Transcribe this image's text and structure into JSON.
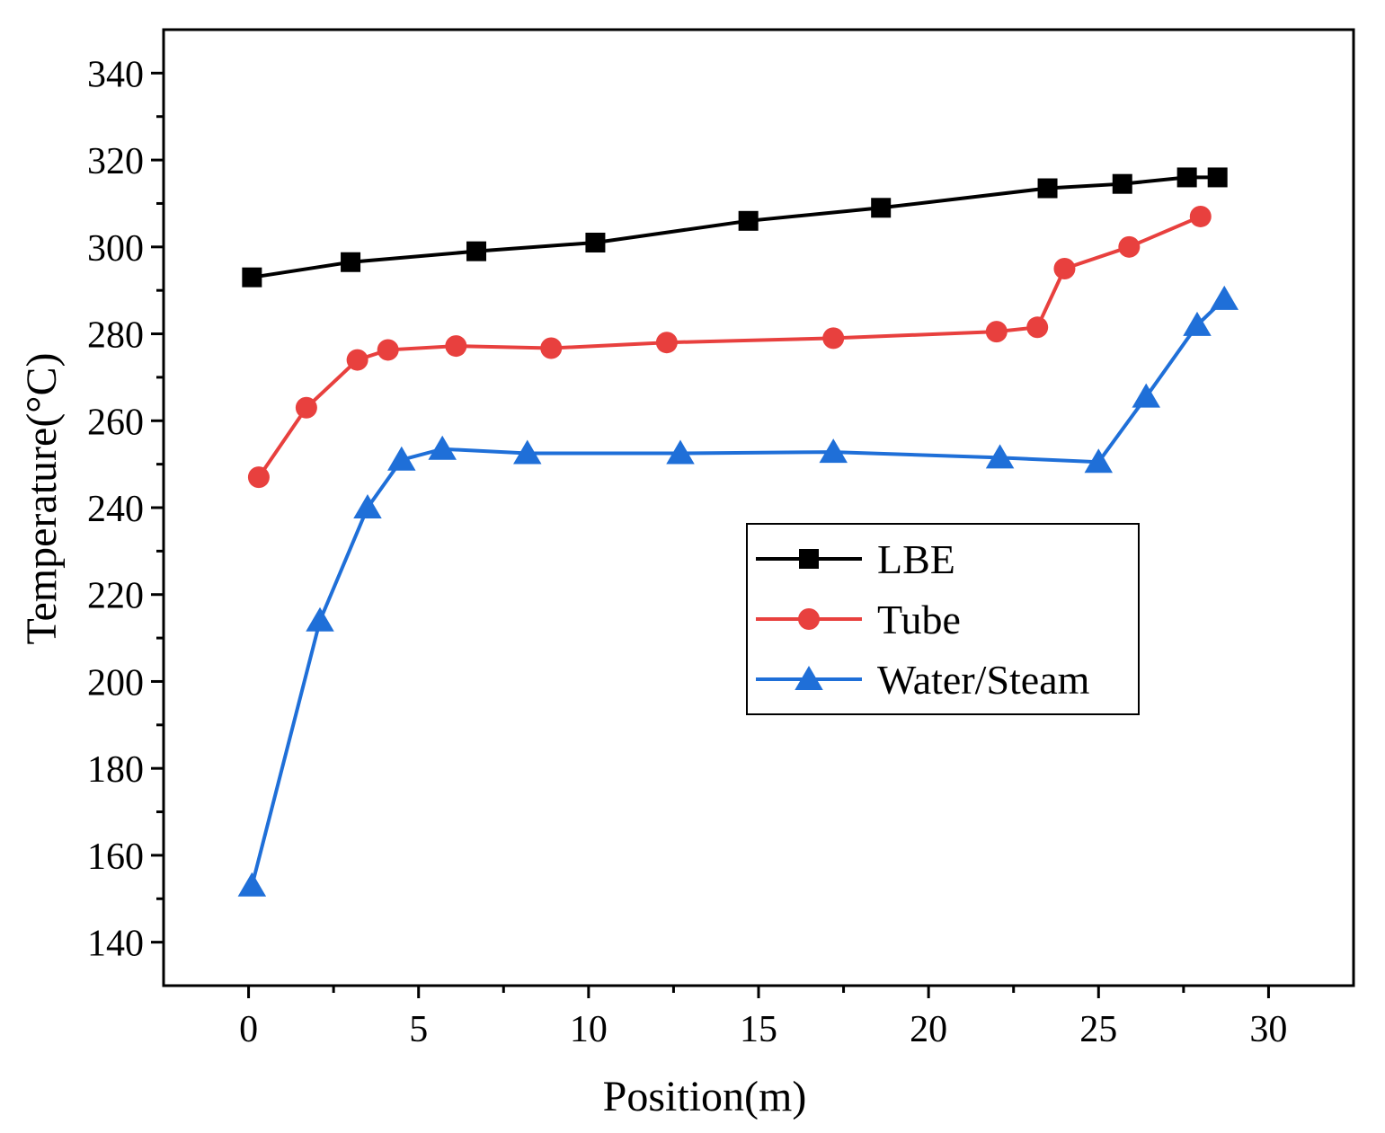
{
  "chart_data": {
    "type": "line",
    "title": "",
    "xlabel": "Position(m)",
    "ylabel": "Temperature(°C)",
    "xlim": [
      -2.5,
      32.5
    ],
    "ylim": [
      130,
      350
    ],
    "xticks": [
      0,
      5,
      10,
      15,
      20,
      25,
      30
    ],
    "yticks": [
      140,
      160,
      180,
      200,
      220,
      240,
      260,
      280,
      300,
      320,
      340
    ],
    "xtick_labels": [
      "0",
      "5",
      "10",
      "15",
      "20",
      "25",
      "30"
    ],
    "ytick_labels": [
      "140",
      "160",
      "180",
      "200",
      "220",
      "240",
      "260",
      "280",
      "300",
      "320",
      "340"
    ],
    "grid": false,
    "legend_position": "center-right",
    "series": [
      {
        "name": "LBE",
        "color": "#000000",
        "marker": "square",
        "x": [
          0.1,
          3.0,
          6.7,
          10.2,
          14.7,
          18.6,
          23.5,
          25.7,
          27.6,
          28.5
        ],
        "y": [
          293,
          296.5,
          299,
          301,
          306,
          309,
          313.5,
          314.5,
          316,
          316
        ]
      },
      {
        "name": "Tube",
        "color": "#e8403e",
        "marker": "circle",
        "x": [
          0.3,
          1.7,
          3.2,
          4.1,
          6.1,
          8.9,
          12.3,
          17.2,
          22.0,
          23.2,
          24.0,
          25.9,
          28.0
        ],
        "y": [
          247,
          263,
          274,
          276.3,
          277.2,
          276.7,
          278,
          279,
          280.5,
          281.5,
          295,
          300,
          307
        ]
      },
      {
        "name": "Water/Steam",
        "color": "#1f6fd8",
        "marker": "triangle",
        "x": [
          0.1,
          2.1,
          3.5,
          4.5,
          5.7,
          8.2,
          12.7,
          17.2,
          22.1,
          25.0,
          26.4,
          27.9,
          28.7
        ],
        "y": [
          153,
          214,
          240,
          251,
          253.5,
          252.5,
          252.5,
          252.8,
          251.5,
          250.5,
          265.5,
          282,
          288
        ]
      }
    ]
  }
}
